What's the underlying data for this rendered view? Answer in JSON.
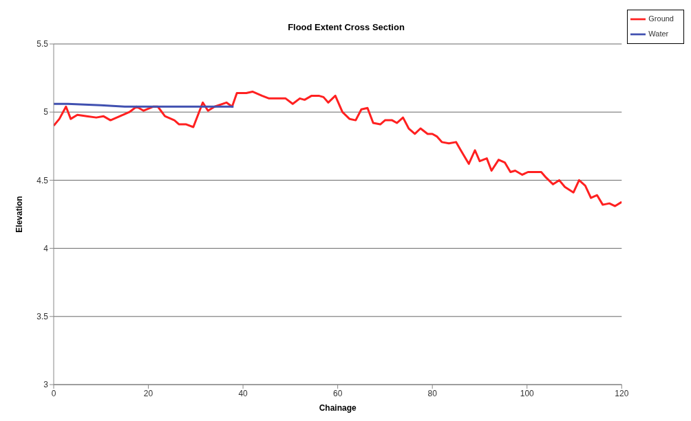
{
  "chart_data": {
    "type": "line",
    "title": "Flood Extent Cross Section",
    "xlabel": "Chainage",
    "ylabel": "Elevation",
    "series": [
      {
        "name": "Ground",
        "color": "#ff2020",
        "x": [
          0,
          1.2,
          2.6,
          3.6,
          5,
          7,
          9,
          10.5,
          12,
          14,
          16,
          17.5,
          19,
          21,
          22,
          23.5,
          25.5,
          26.5,
          28,
          29.5,
          31.5,
          32.6,
          34,
          36.5,
          37.7,
          38.7,
          40.7,
          42,
          44,
          45.5,
          49,
          50.5,
          52,
          53,
          54.5,
          56,
          57,
          58,
          59.5,
          61,
          62.5,
          63.8,
          65,
          66.3,
          67.5,
          69,
          70,
          71.5,
          72.5,
          73.8,
          75,
          76.3,
          77.5,
          79,
          80,
          81,
          82,
          83.5,
          85,
          86,
          87.7,
          89,
          90,
          91.5,
          92.5,
          94,
          95.3,
          96.5,
          97.5,
          99,
          100.2,
          103,
          104,
          105.5,
          106.8,
          108,
          109.8,
          111,
          112.3,
          113.5,
          114.8,
          116,
          117.4,
          118.6,
          120
        ],
        "values": [
          4.9,
          4.95,
          5.04,
          4.95,
          4.98,
          4.97,
          4.96,
          4.97,
          4.94,
          4.97,
          5.0,
          5.04,
          5.01,
          5.04,
          5.04,
          4.97,
          4.94,
          4.91,
          4.91,
          4.89,
          5.07,
          5.01,
          5.04,
          5.07,
          5.04,
          5.14,
          5.14,
          5.15,
          5.12,
          5.1,
          5.1,
          5.06,
          5.1,
          5.09,
          5.12,
          5.12,
          5.11,
          5.07,
          5.12,
          5.0,
          4.95,
          4.94,
          5.02,
          5.03,
          4.92,
          4.91,
          4.94,
          4.94,
          4.92,
          4.96,
          4.88,
          4.84,
          4.88,
          4.84,
          4.84,
          4.82,
          4.78,
          4.77,
          4.78,
          4.72,
          4.62,
          4.72,
          4.64,
          4.66,
          4.57,
          4.65,
          4.63,
          4.56,
          4.57,
          4.54,
          4.56,
          4.56,
          4.52,
          4.47,
          4.5,
          4.45,
          4.41,
          4.5,
          4.46,
          4.37,
          4.39,
          4.32,
          4.33,
          4.31,
          4.34
        ]
      },
      {
        "name": "Water",
        "color": "#4050b0",
        "x": [
          0,
          3,
          10,
          15,
          38
        ],
        "values": [
          5.06,
          5.06,
          5.05,
          5.04,
          5.04
        ]
      }
    ],
    "xlim": [
      0,
      120
    ],
    "xticks": [
      0,
      20,
      40,
      60,
      80,
      100,
      120
    ],
    "ylim": [
      3,
      5.5
    ],
    "yticks": [
      3,
      3.5,
      4,
      4.5,
      5,
      5.5
    ],
    "grid": "y",
    "legend": "top right",
    "marker": "none",
    "line_style": "solid"
  }
}
